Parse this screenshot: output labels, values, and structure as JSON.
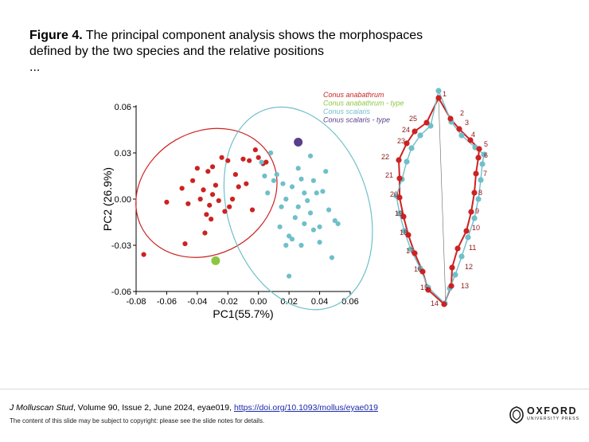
{
  "caption": {
    "label": "Figure 4.",
    "text": " The principal component analysis shows the morphospaces defined by the two species and the relative positions",
    "ellipsis": "..."
  },
  "chart_data": [
    {
      "type": "scatter",
      "xlabel": "PC1(55.7%)",
      "ylabel": "PC2 (26.9%)",
      "xlim": [
        -0.08,
        0.06
      ],
      "ylim": [
        -0.06,
        0.06
      ],
      "xticks": [
        "-0.08",
        "-0.06",
        "-0.04",
        "-0.02",
        "0.00",
        "0.02",
        "0.04",
        "0.06"
      ],
      "yticks": [
        "0.06",
        "0.03",
        "0.00",
        "-0.03",
        "-0.06"
      ],
      "grid": false,
      "legend_position": "top-right",
      "colors": {
        "anabathrum": "#cc2222",
        "anabathrum_type": "#8cc63f",
        "scalaris": "#6fbfca",
        "scalaris_type": "#5a3e8a"
      },
      "series": [
        {
          "name": "Conus anabathrum",
          "points": [
            [
              -0.075,
              -0.036
            ],
            [
              -0.06,
              -0.002
            ],
            [
              -0.05,
              0.007
            ],
            [
              -0.048,
              -0.029
            ],
            [
              -0.046,
              -0.003
            ],
            [
              -0.043,
              0.012
            ],
            [
              -0.04,
              0.02
            ],
            [
              -0.038,
              0.0
            ],
            [
              -0.036,
              0.006
            ],
            [
              -0.035,
              -0.022
            ],
            [
              -0.034,
              -0.01
            ],
            [
              -0.033,
              0.018
            ],
            [
              -0.032,
              -0.004
            ],
            [
              -0.031,
              -0.013
            ],
            [
              -0.03,
              0.021
            ],
            [
              -0.03,
              0.003
            ],
            [
              -0.028,
              0.009
            ],
            [
              -0.026,
              -0.001
            ],
            [
              -0.024,
              0.027
            ],
            [
              -0.022,
              -0.008
            ],
            [
              -0.02,
              0.025
            ],
            [
              -0.019,
              -0.005
            ],
            [
              -0.017,
              0.0
            ],
            [
              -0.015,
              0.016
            ],
            [
              -0.013,
              0.008
            ],
            [
              -0.01,
              0.026
            ],
            [
              -0.008,
              0.01
            ],
            [
              -0.006,
              0.025
            ],
            [
              -0.004,
              -0.007
            ],
            [
              -0.002,
              0.032
            ],
            [
              0.0,
              0.027
            ],
            [
              0.003,
              0.023
            ],
            [
              0.005,
              0.024
            ]
          ]
        },
        {
          "name": "Conus anabathrum - type",
          "points": [
            [
              -0.028,
              -0.04
            ]
          ]
        },
        {
          "name": "Conus scalaris",
          "points": [
            [
              0.002,
              0.024
            ],
            [
              0.004,
              0.015
            ],
            [
              0.006,
              0.004
            ],
            [
              0.008,
              0.03
            ],
            [
              0.01,
              0.012
            ],
            [
              0.012,
              0.016
            ],
            [
              0.014,
              -0.018
            ],
            [
              0.015,
              -0.005
            ],
            [
              0.016,
              0.01
            ],
            [
              0.018,
              -0.03
            ],
            [
              0.018,
              0.0
            ],
            [
              0.02,
              -0.024
            ],
            [
              0.022,
              0.008
            ],
            [
              0.022,
              -0.026
            ],
            [
              0.024,
              -0.012
            ],
            [
              0.026,
              0.02
            ],
            [
              0.026,
              -0.005
            ],
            [
              0.028,
              0.013
            ],
            [
              0.028,
              -0.03
            ],
            [
              0.03,
              0.004
            ],
            [
              0.03,
              -0.016
            ],
            [
              0.032,
              -0.001
            ],
            [
              0.034,
              -0.009
            ],
            [
              0.034,
              0.028
            ],
            [
              0.036,
              0.012
            ],
            [
              0.036,
              -0.02
            ],
            [
              0.038,
              0.004
            ],
            [
              0.04,
              -0.028
            ],
            [
              0.04,
              -0.018
            ],
            [
              0.042,
              0.005
            ],
            [
              0.044,
              0.018
            ],
            [
              0.046,
              -0.007
            ],
            [
              0.048,
              -0.038
            ],
            [
              0.05,
              -0.014
            ],
            [
              0.052,
              -0.016
            ],
            [
              0.02,
              -0.05
            ]
          ]
        },
        {
          "name": "Conus scalaris - type",
          "points": [
            [
              0.026,
              0.037
            ]
          ]
        }
      ],
      "ellipses": [
        {
          "series": "Conus anabathrum",
          "cx": -0.034,
          "cy": 0.004,
          "rx": 0.048,
          "ry": 0.04,
          "rotation_deg": -30
        },
        {
          "series": "Conus scalaris",
          "cx": 0.026,
          "cy": -0.006,
          "rx": 0.068,
          "ry": 0.046,
          "rotation_deg": 72
        }
      ]
    },
    {
      "type": "diagram",
      "landmark_labels": [
        "1",
        "2",
        "3",
        "4",
        "5",
        "6",
        "7",
        "8",
        "9",
        "10",
        "11",
        "12",
        "13",
        "14",
        "15",
        "16",
        "17",
        "18",
        "19",
        "20",
        "21",
        "22",
        "23",
        "24",
        "25"
      ]
    }
  ],
  "citation": {
    "journal": "J Molluscan Stud",
    "details": ", Volume 90, Issue 2, June 2024, eyae019, ",
    "doi": "https://doi.org/10.1093/mollus/eyae019"
  },
  "copyright": "The content of this slide may be subject to copyright: please see the slide notes for details.",
  "publisher": {
    "name": "OXFORD",
    "sub": "UNIVERSITY PRESS"
  }
}
